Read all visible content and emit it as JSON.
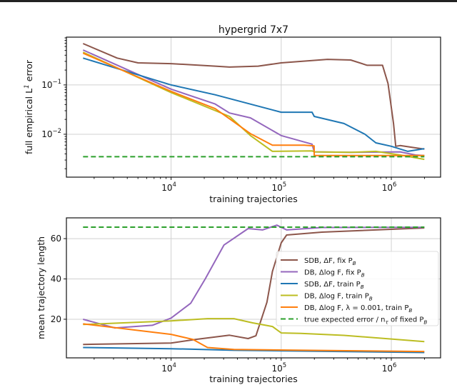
{
  "chart_data": [
    {
      "type": "line",
      "title": "hypergrid 7x7",
      "xlabel": "training trajectories",
      "ylabel": "full empirical L^1 error",
      "xscale": "log",
      "yscale": "log",
      "xlim": [
        1120,
        2800000
      ],
      "ylim": [
        0.00135,
        0.93
      ],
      "xticks": [
        {
          "value": 10000,
          "base": "10",
          "exp": "4"
        },
        {
          "value": 100000,
          "base": "10",
          "exp": "5"
        },
        {
          "value": 1000000,
          "base": "10",
          "exp": "6"
        }
      ],
      "yticks": [
        {
          "value": 0.1,
          "base": "10",
          "exp": "−1"
        },
        {
          "value": 0.01,
          "base": "10",
          "exp": "−2"
        }
      ],
      "grid": true,
      "series": [
        {
          "name": "SDB, ΔF, fix P_B",
          "color": "#8c564b",
          "dashed": false,
          "points": [
            [
              1585,
              0.69
            ],
            [
              3240,
              0.35
            ],
            [
              5010,
              0.28
            ],
            [
              10000,
              0.27
            ],
            [
              25100,
              0.24
            ],
            [
              33900,
              0.23
            ],
            [
              61700,
              0.24
            ],
            [
              100000,
              0.28
            ],
            [
              263000,
              0.33
            ],
            [
              427000,
              0.32
            ],
            [
              603000,
              0.25
            ],
            [
              832000,
              0.25
            ],
            [
              933000,
              0.107
            ],
            [
              1047000,
              0.0165
            ],
            [
              1096000,
              0.0057
            ],
            [
              1202000,
              0.0059
            ],
            [
              1660000,
              0.0053
            ],
            [
              1995000,
              0.005
            ]
          ]
        },
        {
          "name": "DB, Δlog F, fix P_B",
          "color": "#9467bd",
          "dashed": false,
          "points": [
            [
              1585,
              0.51
            ],
            [
              10000,
              0.082
            ],
            [
              25100,
              0.041
            ],
            [
              33900,
              0.027
            ],
            [
              52500,
              0.0215
            ],
            [
              100000,
              0.0094
            ],
            [
              190500,
              0.0063
            ],
            [
              199500,
              0.0044
            ],
            [
              427000,
              0.0043
            ],
            [
              1202000,
              0.0044
            ],
            [
              1660000,
              0.0038
            ],
            [
              1995000,
              0.0037
            ]
          ]
        },
        {
          "name": "SDB, ΔF, train P_B",
          "color": "#1f77b4",
          "dashed": false,
          "points": [
            [
              1585,
              0.35
            ],
            [
              10000,
              0.1
            ],
            [
              25100,
              0.063
            ],
            [
              100000,
              0.028
            ],
            [
              190500,
              0.028
            ],
            [
              199500,
              0.023
            ],
            [
              371500,
              0.0165
            ],
            [
              575000,
              0.01
            ],
            [
              724000,
              0.0067
            ],
            [
              1000000,
              0.0057
            ],
            [
              1412000,
              0.0045
            ],
            [
              1995000,
              0.0051
            ]
          ]
        },
        {
          "name": "DB, Δlog F, train P_B",
          "color": "#bcbd22",
          "dashed": false,
          "points": [
            [
              1585,
              0.46
            ],
            [
              10000,
              0.07
            ],
            [
              33900,
              0.023
            ],
            [
              52500,
              0.0094
            ],
            [
              83200,
              0.0045
            ],
            [
              190500,
              0.0046
            ],
            [
              199500,
              0.0044
            ],
            [
              427000,
              0.0043
            ],
            [
              724000,
              0.0045
            ],
            [
              1202000,
              0.0038
            ],
            [
              1995000,
              0.0031
            ]
          ]
        },
        {
          "name": "DB, Δlog F, λ = 0.001, train P_B",
          "color": "#ff7f0e",
          "dashed": false,
          "points": [
            [
              1585,
              0.44
            ],
            [
              10000,
              0.074
            ],
            [
              25100,
              0.033
            ],
            [
              52500,
              0.0103
            ],
            [
              83200,
              0.006
            ],
            [
              162000,
              0.006
            ],
            [
              199000,
              0.0058
            ],
            [
              199500,
              0.0037
            ],
            [
              1995000,
              0.0037
            ]
          ]
        },
        {
          "name": "true expected error / n_τ of fixed P_B",
          "color": "#2ca02c",
          "dashed": true,
          "points": [
            [
              1585,
              0.0035
            ],
            [
              1995000,
              0.0035
            ]
          ]
        }
      ]
    },
    {
      "type": "line",
      "xlabel": "training trajectories",
      "ylabel": "mean trajectory length",
      "xscale": "log",
      "yscale": "linear",
      "xlim": [
        1120,
        2800000
      ],
      "ylim": [
        0.85,
        70.3
      ],
      "xticks": [
        {
          "value": 10000,
          "base": "10",
          "exp": "4"
        },
        {
          "value": 100000,
          "base": "10",
          "exp": "5"
        },
        {
          "value": 1000000,
          "base": "10",
          "exp": "6"
        }
      ],
      "yticks": [
        {
          "value": 20,
          "label": "20"
        },
        {
          "value": 40,
          "label": "40"
        },
        {
          "value": 60,
          "label": "60"
        }
      ],
      "grid": true,
      "legend_position": "center-right",
      "series": [
        {
          "name": "SDB, ΔF, fix P_B",
          "color": "#8c564b",
          "dashed": false,
          "points": [
            [
              1585,
              7.5
            ],
            [
              10000,
              8.2
            ],
            [
              16600,
              10
            ],
            [
              33900,
              12.1
            ],
            [
              50100,
              10.4
            ],
            [
              58900,
              11.8
            ],
            [
              74100,
              28.4
            ],
            [
              83200,
              43.7
            ],
            [
              100000,
              57.9
            ],
            [
              112000,
              61.8
            ],
            [
              234000,
              63.2
            ],
            [
              1995000,
              65.3
            ]
          ]
        },
        {
          "name": "DB, Δlog F, fix P_B",
          "color": "#9467bd",
          "dashed": false,
          "points": [
            [
              1585,
              20
            ],
            [
              3090,
              15.7
            ],
            [
              6760,
              17
            ],
            [
              10000,
              20.6
            ],
            [
              15100,
              28
            ],
            [
              20400,
              40
            ],
            [
              30200,
              56.8
            ],
            [
              50100,
              65
            ],
            [
              67600,
              64.3
            ],
            [
              91200,
              66.7
            ],
            [
              112000,
              64.3
            ],
            [
              234000,
              65.5
            ],
            [
              1995000,
              65.6
            ]
          ]
        },
        {
          "name": "SDB, ΔF, train P_B",
          "color": "#1f77b4",
          "dashed": false,
          "points": [
            [
              1585,
              6
            ],
            [
              10000,
              5.4
            ],
            [
              37200,
              4.6
            ],
            [
              1995000,
              3.5
            ]
          ]
        },
        {
          "name": "DB, Δlog F, train P_B",
          "color": "#bcbd22",
          "dashed": false,
          "points": [
            [
              1585,
              17.4
            ],
            [
              10000,
              19.2
            ],
            [
              21400,
              20.3
            ],
            [
              37200,
              20.3
            ],
            [
              55000,
              18.2
            ],
            [
              83200,
              16.4
            ],
            [
              100000,
              13.2
            ],
            [
              151000,
              13
            ],
            [
              371500,
              12
            ],
            [
              1995000,
              8.9
            ]
          ]
        },
        {
          "name": "DB, Δlog F, λ = 0.001, train P_B",
          "color": "#ff7f0e",
          "dashed": false,
          "points": [
            [
              1585,
              17.7
            ],
            [
              10000,
              12.5
            ],
            [
              15800,
              10
            ],
            [
              21400,
              6
            ],
            [
              37200,
              5
            ],
            [
              112000,
              4.7
            ],
            [
              1995000,
              4
            ]
          ]
        },
        {
          "name": "true expected error / n_τ of fixed P_B",
          "color": "#2ca02c",
          "dashed": true,
          "points": [
            [
              1585,
              65.7
            ],
            [
              1995000,
              65.7
            ]
          ]
        }
      ]
    }
  ]
}
